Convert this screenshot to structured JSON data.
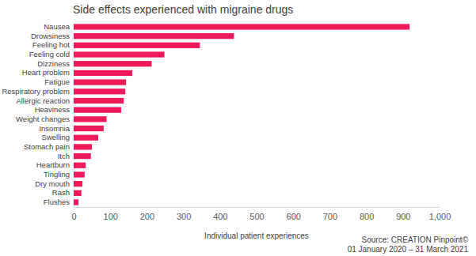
{
  "chart_data": {
    "type": "bar",
    "orientation": "horizontal",
    "title": "Side effects experienced with migraine drugs",
    "x_label": "Individual patient experiences",
    "annotations": [
      "Source: CREATION Pinpoint©",
      "01 January 2020 – 31 March 2021"
    ],
    "categories": [
      "Nausea",
      "Drowsiness",
      "Feeling hot",
      "Feeling cold",
      "Dizziness",
      "Heart problem",
      "Fatigue",
      "Respiratory problem",
      "Allergic reaction",
      "Heaviness",
      "Weight changes",
      "Insomnia",
      "Swelling",
      "Stomach pain",
      "Itch",
      "Heartburn",
      "Tingling",
      "Dry mouth",
      "Rash",
      "Flushes"
    ],
    "values": [
      918,
      438,
      345,
      248,
      213,
      160,
      143,
      141,
      137,
      130,
      90,
      82,
      67,
      50,
      47,
      33,
      30,
      24,
      21,
      13
    ],
    "color": "#ee1a5a",
    "xlim": [
      0,
      1000
    ],
    "xticks": [
      0,
      100,
      200,
      300,
      400,
      500,
      600,
      700,
      800,
      900,
      {
        "value": 1000,
        "label": "1,000"
      }
    ],
    "grid": false
  }
}
